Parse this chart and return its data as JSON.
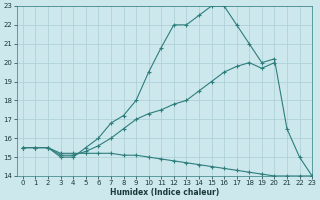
{
  "xlabel": "Humidex (Indice chaleur)",
  "background_color": "#cce8ec",
  "grid_color": "#aacdd4",
  "line_color": "#2e7d7d",
  "x_values": [
    0,
    1,
    2,
    3,
    4,
    5,
    6,
    7,
    8,
    9,
    10,
    11,
    12,
    13,
    14,
    15,
    16,
    17,
    18,
    19,
    20,
    21,
    22,
    23
  ],
  "line1": [
    15.5,
    15.5,
    15.5,
    15.0,
    15.0,
    15.5,
    16.0,
    16.8,
    17.2,
    18.0,
    19.5,
    20.8,
    22.0,
    22.0,
    22.5,
    23.0,
    23.0,
    22.0,
    21.0,
    20.0,
    20.2,
    16.5,
    15.0,
    14.0
  ],
  "line2": [
    15.5,
    15.5,
    15.5,
    15.1,
    15.1,
    15.3,
    15.6,
    16.0,
    16.5,
    17.0,
    17.3,
    17.5,
    17.8,
    18.0,
    18.5,
    19.0,
    19.5,
    19.8,
    20.0,
    19.7,
    20.0,
    null,
    null,
    null
  ],
  "line3": [
    15.5,
    15.5,
    15.5,
    15.2,
    15.2,
    15.2,
    15.2,
    15.2,
    15.1,
    15.1,
    15.0,
    14.9,
    14.8,
    14.7,
    14.6,
    14.5,
    14.4,
    14.3,
    14.2,
    14.1,
    14.0,
    14.0,
    14.0,
    14.0
  ],
  "ylim": [
    14,
    23
  ],
  "xlim": [
    -0.5,
    23
  ],
  "yticks": [
    14,
    15,
    16,
    17,
    18,
    19,
    20,
    21,
    22,
    23
  ],
  "xticks": [
    0,
    1,
    2,
    3,
    4,
    5,
    6,
    7,
    8,
    9,
    10,
    11,
    12,
    13,
    14,
    15,
    16,
    17,
    18,
    19,
    20,
    21,
    22,
    23
  ],
  "figsize": [
    3.2,
    2.0
  ],
  "dpi": 100
}
